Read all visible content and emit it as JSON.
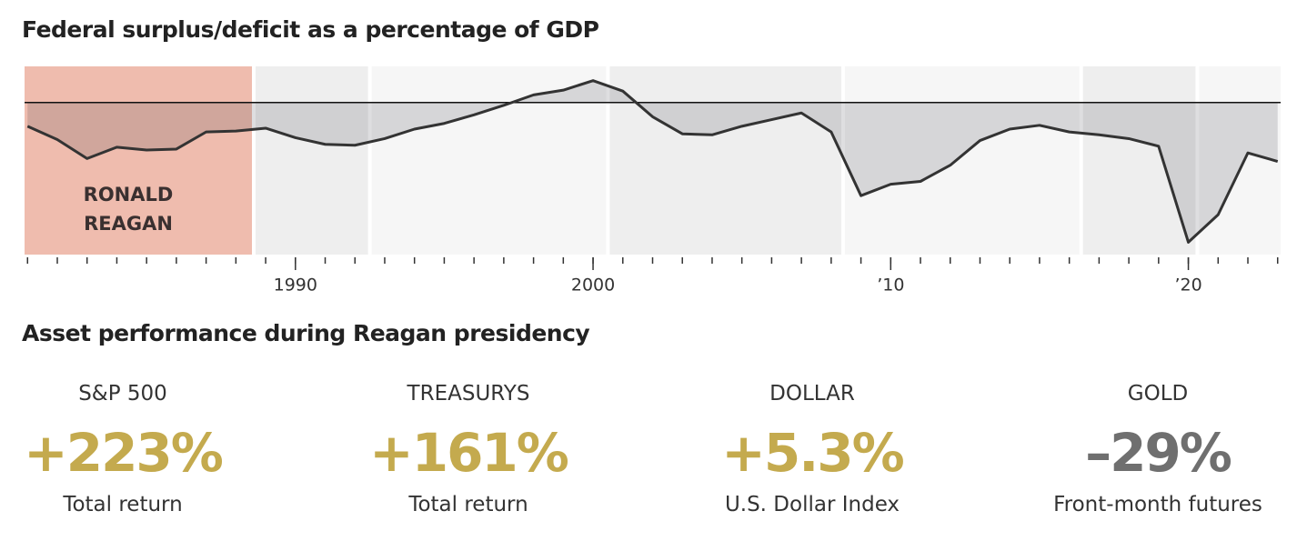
{
  "chart_data": {
    "type": "area-line",
    "title": "Federal surplus/deficit as a percentage of GDP",
    "x": [
      1981,
      1982,
      1983,
      1984,
      1985,
      1986,
      1987,
      1988,
      1989,
      1990,
      1991,
      1992,
      1993,
      1994,
      1995,
      1996,
      1997,
      1998,
      1999,
      2000,
      2001,
      2002,
      2003,
      2004,
      2005,
      2006,
      2007,
      2008,
      2009,
      2010,
      2011,
      2012,
      2013,
      2014,
      2015,
      2016,
      2017,
      2018,
      2019,
      2020,
      2021,
      2022,
      2023
    ],
    "values": [
      -2.5,
      -3.9,
      -5.9,
      -4.7,
      -5.0,
      -4.9,
      -3.1,
      -3.0,
      -2.7,
      -3.7,
      -4.4,
      -4.5,
      -3.8,
      -2.8,
      -2.2,
      -1.3,
      -0.3,
      0.8,
      1.3,
      2.3,
      1.2,
      -1.5,
      -3.3,
      -3.4,
      -2.5,
      -1.8,
      -1.1,
      -3.1,
      -9.8,
      -8.6,
      -8.3,
      -6.6,
      -4.0,
      -2.8,
      -2.4,
      -3.1,
      -3.4,
      -3.8,
      -4.6,
      -14.7,
      -11.8,
      -5.3,
      -6.2
    ],
    "color": "#333333",
    "area_color": "rgba(60,62,70,0.17)",
    "xlim": [
      1980.9,
      2023.1
    ],
    "ylim": [
      -16,
      3.8
    ],
    "xticks": [
      1990,
      2000,
      {
        "value": 2010,
        "label": "’10"
      },
      {
        "value": 2020,
        "label": "’20"
      }
    ],
    "bands": [
      {
        "start": 1980.9,
        "end": 1988.6,
        "color": "#efbcae",
        "label": "RONALD REAGAN"
      },
      {
        "start": 1988.6,
        "end": 1992.5,
        "color": "#eeeeee"
      },
      {
        "start": 1992.5,
        "end": 2000.5,
        "color": "#f6f6f6"
      },
      {
        "start": 2000.5,
        "end": 2008.4,
        "color": "#eeeeee"
      },
      {
        "start": 2008.4,
        "end": 2016.4,
        "color": "#f6f6f6"
      },
      {
        "start": 2016.4,
        "end": 2020.3,
        "color": "#eeeeee"
      },
      {
        "start": 2020.3,
        "end": 2023.1,
        "color": "#f6f6f6"
      }
    ]
  },
  "stats": {
    "title": "Asset performance during Reagan presidency",
    "items": [
      {
        "name": "S&P 500",
        "value": "+223%",
        "note": "Total return",
        "color": "#c4aa4e"
      },
      {
        "name": "TREASURYS",
        "value": "+161%",
        "note": "Total return",
        "color": "#c4aa4e"
      },
      {
        "name": "DOLLAR",
        "value": "+5.3%",
        "note": "U.S. Dollar Index",
        "color": "#c4aa4e"
      },
      {
        "name": "GOLD",
        "value": "–29%",
        "note": "Front-month futures",
        "color": "#6f6f6f"
      }
    ]
  }
}
